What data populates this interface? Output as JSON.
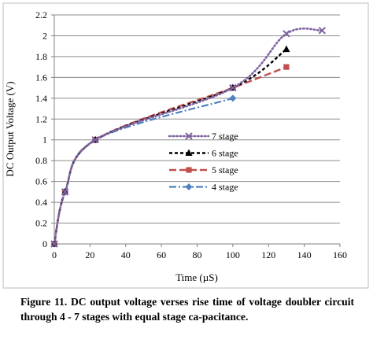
{
  "chart_data": {
    "type": "line",
    "xlabel": "Time (µS)",
    "ylabel": "DC Output Voltage (V)",
    "xlim": [
      0,
      160
    ],
    "ylim": [
      0,
      2.2
    ],
    "x_ticks": [
      "0",
      "20",
      "40",
      "60",
      "80",
      "100",
      "120",
      "140",
      "160"
    ],
    "y_ticks": [
      "0",
      "0.2",
      "0.4",
      "0.6",
      "0.8",
      "1",
      "1.2",
      "1.4",
      "1.6",
      "1.8",
      "2",
      "2.2"
    ],
    "legend_position": "center-right",
    "series": [
      {
        "name": "7 stage",
        "color": "#8064a2",
        "dash": "dotted",
        "marker": "x",
        "points": [
          [
            0,
            0
          ],
          [
            6,
            0.5
          ],
          [
            23,
            1.0
          ],
          [
            100,
            1.5
          ],
          [
            130,
            2.02
          ],
          [
            150,
            2.05
          ]
        ]
      },
      {
        "name": "6 stage",
        "color": "#000000",
        "dash": "dashed",
        "marker": "triangle",
        "points": [
          [
            0,
            0
          ],
          [
            6,
            0.5
          ],
          [
            23,
            1.0
          ],
          [
            100,
            1.5
          ],
          [
            130,
            1.87
          ]
        ]
      },
      {
        "name": "5 stage",
        "color": "#c0504d",
        "dash": "long-dash",
        "marker": "square",
        "points": [
          [
            0,
            0
          ],
          [
            6,
            0.5
          ],
          [
            23,
            1.0
          ],
          [
            100,
            1.5
          ],
          [
            130,
            1.7
          ]
        ]
      },
      {
        "name": "4 stage",
        "color": "#4f81bd",
        "dash": "dash-dot",
        "marker": "diamond",
        "points": [
          [
            0,
            0
          ],
          [
            6,
            0.5
          ],
          [
            23,
            1.0
          ],
          [
            100,
            1.4
          ]
        ]
      }
    ]
  },
  "caption": "Figure 11. DC output voltage verses rise time of voltage doubler circuit through 4 - 7 stages with equal stage ca-pacitance."
}
